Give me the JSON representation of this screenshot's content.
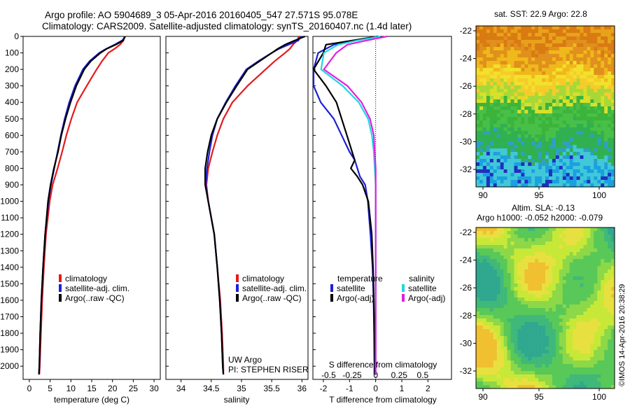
{
  "header": {
    "line1": "Argo profile: AO 5904689_3 05-Apr-2016 20160405_547 27.571S 95.078E",
    "line2": "Climatology: CARS2009. Satellite-adjusted climatology: synTS_20160407.nc (1.4d later)"
  },
  "credit": "©IMOS 14-Apr-2016 20:38:29",
  "colors": {
    "clim": "#e41a1c",
    "sat": "#1f1fd6",
    "argo": "#000000",
    "sat_s": "#22d6e0",
    "argo_s": "#e020e0"
  },
  "depth_ticks": [
    "0",
    "100",
    "200",
    "300",
    "400",
    "500",
    "600",
    "700",
    "800",
    "900",
    "1000",
    "1100",
    "1200",
    "1300",
    "1400",
    "1500",
    "1600",
    "1700",
    "1800",
    "1900",
    "2000"
  ],
  "chart_data": [
    {
      "type": "line",
      "name": "temperature",
      "xlabel": "temperature (deg C)",
      "xlim": [
        -1.5,
        31.5
      ],
      "xticks": [
        "0",
        "5",
        "10",
        "15",
        "20",
        "25",
        "30"
      ],
      "ylim": [
        2080,
        0
      ],
      "legend": [
        "climatology",
        "satellite-adj. clim.",
        "Argo(..raw -QC)"
      ],
      "series": [
        {
          "name": "climatology",
          "color": "clim",
          "depth": [
            0,
            25,
            50,
            75,
            100,
            150,
            200,
            300,
            400,
            500,
            600,
            700,
            800,
            900,
            1000,
            1200,
            1400,
            1600,
            1800,
            2000,
            2050
          ],
          "values": [
            22.9,
            22.6,
            21.8,
            20.5,
            19.0,
            17.5,
            16.2,
            13.8,
            11.5,
            10.1,
            8.9,
            7.9,
            6.8,
            5.6,
            4.9,
            4.0,
            3.5,
            3.1,
            2.8,
            2.5,
            2.4
          ]
        },
        {
          "name": "satellite-adj. clim.",
          "color": "sat",
          "depth": [
            0,
            25,
            50,
            75,
            100,
            150,
            200,
            300,
            400,
            500,
            600,
            700,
            800,
            900,
            1000,
            1200,
            1400,
            1600,
            1800,
            2000,
            2050
          ],
          "values": [
            23.1,
            22.3,
            20.5,
            18.5,
            16.8,
            14.5,
            12.9,
            11.0,
            9.6,
            8.5,
            7.6,
            6.8,
            6.0,
            5.2,
            4.6,
            3.8,
            3.3,
            2.9,
            2.6,
            2.4,
            2.3
          ]
        },
        {
          "name": "Argo(..raw -QC)",
          "color": "argo",
          "depth": [
            0,
            25,
            50,
            75,
            100,
            150,
            200,
            300,
            400,
            500,
            600,
            700,
            800,
            900,
            1000,
            1200,
            1400,
            1600,
            1800,
            2000,
            2050
          ],
          "values": [
            23.0,
            22.6,
            20.8,
            18.6,
            17.1,
            14.8,
            13.2,
            11.3,
            9.9,
            8.7,
            7.7,
            6.9,
            5.9,
            5.1,
            4.5,
            3.8,
            3.3,
            2.9,
            2.6,
            2.4,
            2.3
          ]
        }
      ]
    },
    {
      "type": "line",
      "name": "salinity",
      "xlabel": "salinity",
      "xlim": [
        33.75,
        36.1
      ],
      "xticks": [
        "34",
        "34.5",
        "35",
        "35.5",
        "36"
      ],
      "ylim": [
        2080,
        0
      ],
      "legend": [
        "climatology",
        "satellite-adj. clim.",
        "Argo(..raw -QC)"
      ],
      "annotation": [
        "UW Argo",
        "PI: STEPHEN RISER"
      ],
      "series": [
        {
          "name": "climatology",
          "color": "clim",
          "depth": [
            0,
            25,
            50,
            75,
            100,
            150,
            200,
            300,
            400,
            500,
            600,
            700,
            800,
            900,
            1000,
            1200,
            1400,
            1600,
            1800,
            2000,
            2050
          ],
          "values": [
            35.95,
            35.92,
            35.85,
            35.8,
            35.72,
            35.55,
            35.4,
            35.1,
            34.85,
            34.7,
            34.6,
            34.52,
            34.45,
            34.42,
            34.45,
            34.55,
            34.6,
            34.65,
            34.68,
            34.7,
            34.7
          ]
        },
        {
          "name": "satellite-adj. clim.",
          "color": "sat",
          "depth": [
            0,
            25,
            50,
            75,
            100,
            150,
            200,
            300,
            400,
            500,
            600,
            700,
            800,
            900,
            1000,
            1200,
            1400,
            1600,
            1800,
            2000,
            2050
          ],
          "values": [
            35.98,
            35.94,
            35.78,
            35.62,
            35.5,
            35.28,
            35.08,
            34.9,
            34.74,
            34.6,
            34.52,
            34.47,
            34.43,
            34.41,
            34.45,
            34.55,
            34.6,
            34.64,
            34.67,
            34.69,
            34.7
          ]
        },
        {
          "name": "Argo(..raw -QC)",
          "color": "argo",
          "depth": [
            0,
            25,
            50,
            75,
            100,
            150,
            200,
            300,
            400,
            500,
            600,
            700,
            800,
            900,
            1000,
            1200,
            1400,
            1600,
            1800,
            2000,
            2050
          ],
          "values": [
            36.05,
            35.88,
            35.72,
            35.6,
            35.5,
            35.3,
            35.1,
            34.92,
            34.75,
            34.6,
            34.5,
            34.44,
            34.4,
            34.4,
            34.45,
            34.55,
            34.6,
            34.64,
            34.67,
            34.69,
            34.7
          ]
        }
      ]
    },
    {
      "type": "line",
      "name": "difference",
      "xlabel": "T difference from climatology",
      "xlim": [
        -2.4,
        2.9
      ],
      "xticks": [
        "-2",
        "-1",
        "0",
        "1",
        "2"
      ],
      "top_xlabel": "S difference from climatology",
      "top_xticks": [
        "-0.5",
        "-0.25",
        "0",
        "0.25",
        "0.5"
      ],
      "ylim": [
        2080,
        0
      ],
      "legend_t": [
        "temperature",
        "satellite",
        "Argo(-adj)"
      ],
      "legend_s": [
        "salinity",
        "satellite",
        "Argo(-adj)"
      ],
      "series": [
        {
          "name": "temperature satellite",
          "color": "sat",
          "depth": [
            0,
            50,
            100,
            200,
            300,
            400,
            500,
            600,
            700,
            750,
            800,
            850,
            900,
            1000,
            1200,
            1400,
            1600,
            1800,
            2000,
            2050
          ],
          "values": [
            0.1,
            -1.6,
            -2.2,
            -3.4,
            -2.8,
            -2.1,
            -1.6,
            -1.3,
            -1.0,
            -0.8,
            -0.7,
            -0.6,
            -0.4,
            -0.3,
            -0.2,
            -0.12,
            -0.08,
            -0.06,
            -0.05,
            -0.05
          ]
        },
        {
          "name": "temperature Argo(-adj)",
          "color": "argo",
          "depth": [
            0,
            50,
            100,
            200,
            300,
            400,
            500,
            600,
            700,
            750,
            800,
            850,
            900,
            1000,
            1200,
            1400,
            1600,
            1800,
            2000,
            2050
          ],
          "values": [
            0.1,
            -1.9,
            -2.0,
            -2.6,
            -1.9,
            -1.5,
            -1.3,
            -1.1,
            -0.9,
            -0.8,
            -0.95,
            -0.7,
            -0.5,
            -0.28,
            -0.15,
            -0.1,
            -0.07,
            -0.05,
            -0.03,
            -0.03
          ]
        },
        {
          "name": "salinity satellite",
          "color": "sat_s",
          "depth": [
            0,
            25,
            50,
            100,
            200,
            300,
            400,
            500,
            600,
            700,
            800,
            900,
            1000,
            1200,
            1400,
            1600,
            1800,
            2000,
            2050
          ],
          "values": [
            0.05,
            -0.2,
            -0.4,
            -0.55,
            -0.58,
            -0.35,
            -0.18,
            -0.08,
            -0.04,
            -0.02,
            -0.01,
            0.0,
            0.0,
            0.0,
            0.0,
            0.0,
            0.0,
            0.0,
            0.0
          ]
        },
        {
          "name": "salinity Argo(-adj)",
          "color": "argo_s",
          "depth": [
            0,
            25,
            50,
            100,
            200,
            300,
            400,
            500,
            600,
            700,
            800,
            900,
            1000,
            1200,
            1400,
            1600,
            1800,
            2000,
            2050
          ],
          "values": [
            0.12,
            -0.1,
            -0.3,
            -0.42,
            -0.55,
            -0.3,
            -0.15,
            -0.06,
            -0.02,
            -0.01,
            0.0,
            0.0,
            0.0,
            0.0,
            0.0,
            0.0,
            0.0,
            0.0,
            0.0
          ]
        }
      ]
    },
    {
      "type": "heatmap",
      "name": "sst",
      "title": "sat. SST: 22.9  Argo: 22.8",
      "xticks": [
        "90",
        "95",
        "100"
      ],
      "yticks": [
        "-22",
        "-24",
        "-26",
        "-28",
        "-30",
        "-32"
      ]
    },
    {
      "type": "heatmap",
      "name": "sla",
      "title1": "Altim. SLA: -0.13",
      "title2": "Argo h1000: -0.052 h2000: -0.079",
      "xticks": [
        "90",
        "95",
        "100"
      ],
      "yticks": [
        "-22",
        "-24",
        "-26",
        "-28",
        "-30",
        "-32"
      ]
    }
  ]
}
